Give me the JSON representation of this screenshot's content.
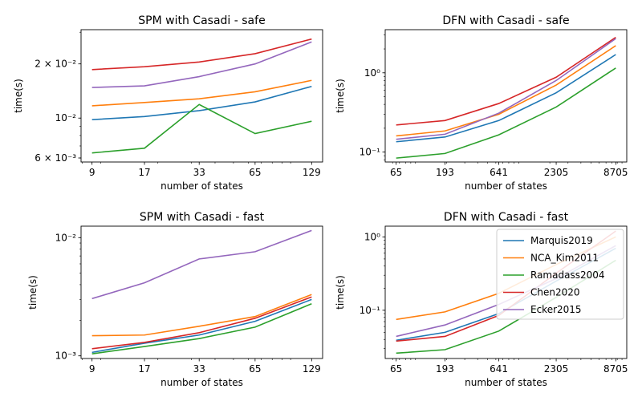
{
  "colors": {
    "Marquis2019": "#1f77b4",
    "NCA_Kim2011": "#ff7f0e",
    "Ramadass2004": "#2ca02c",
    "Chen2020": "#d62728",
    "Ecker2015": "#9467bd"
  },
  "legend_order": [
    "Marquis2019",
    "NCA_Kim2011",
    "Ramadass2004",
    "Chen2020",
    "Ecker2015"
  ],
  "chart_data": [
    {
      "type": "line",
      "title": "SPM with Casadi - safe",
      "xlabel": "number of states",
      "ylabel": "time(s)",
      "xscale": "log",
      "yscale": "log",
      "x": [
        9,
        17,
        33,
        65,
        129
      ],
      "xticks": [
        "9",
        "17",
        "33",
        "65",
        "129"
      ],
      "ylim": [
        0.0057,
        0.031
      ],
      "ymajor": [
        {
          "v": 0.006,
          "t": "6 × 10⁻³"
        },
        {
          "v": 0.01,
          "t": "10⁻²"
        },
        {
          "v": 0.02,
          "t": "2 × 10⁻²"
        }
      ],
      "legend": "",
      "series": [
        {
          "name": "Marquis2019",
          "values": [
            0.0098,
            0.0102,
            0.011,
            0.0123,
            0.015
          ]
        },
        {
          "name": "NCA_Kim2011",
          "values": [
            0.0117,
            0.0122,
            0.0128,
            0.014,
            0.0162
          ]
        },
        {
          "name": "Ramadass2004",
          "values": [
            0.0064,
            0.0068,
            0.0119,
            0.0082,
            0.0096
          ]
        },
        {
          "name": "Chen2020",
          "values": [
            0.0186,
            0.0193,
            0.0205,
            0.0228,
            0.0275
          ]
        },
        {
          "name": "Ecker2015",
          "values": [
            0.0148,
            0.0151,
            0.017,
            0.02,
            0.0265
          ]
        }
      ]
    },
    {
      "type": "line",
      "title": "DFN with Casadi - safe",
      "xlabel": "number of states",
      "ylabel": "time(s)",
      "xscale": "log",
      "yscale": "log",
      "x": [
        65,
        193,
        641,
        2305,
        8705
      ],
      "xticks": [
        "65",
        "193",
        "641",
        "2305",
        "8705"
      ],
      "ylim": [
        0.075,
        3.5
      ],
      "ymajor": [
        {
          "v": 0.1,
          "t": "10⁻¹"
        },
        {
          "v": 1,
          "t": "10⁰"
        }
      ],
      "legend": "",
      "series": [
        {
          "name": "Marquis2019",
          "values": [
            0.135,
            0.155,
            0.25,
            0.56,
            1.7
          ]
        },
        {
          "name": "NCA_Kim2011",
          "values": [
            0.16,
            0.185,
            0.3,
            0.7,
            2.2
          ]
        },
        {
          "name": "Ramadass2004",
          "values": [
            0.084,
            0.096,
            0.165,
            0.37,
            1.15
          ]
        },
        {
          "name": "Chen2020",
          "values": [
            0.22,
            0.25,
            0.41,
            0.88,
            2.8
          ]
        },
        {
          "name": "Ecker2015",
          "values": [
            0.145,
            0.168,
            0.31,
            0.8,
            2.7
          ]
        }
      ]
    },
    {
      "type": "line",
      "title": "SPM with Casadi - fast",
      "xlabel": "number of states",
      "ylabel": "time(s)",
      "xscale": "log",
      "yscale": "log",
      "x": [
        9,
        17,
        33,
        65,
        129
      ],
      "xticks": [
        "9",
        "17",
        "33",
        "65",
        "129"
      ],
      "ylim": [
        0.00095,
        0.0125
      ],
      "ymajor": [
        {
          "v": 0.001,
          "t": "10⁻³"
        },
        {
          "v": 0.01,
          "t": "10⁻²"
        }
      ],
      "legend": "",
      "series": [
        {
          "name": "Marquis2019",
          "values": [
            0.00107,
            0.00128,
            0.0015,
            0.00196,
            0.003
          ]
        },
        {
          "name": "NCA_Kim2011",
          "values": [
            0.00148,
            0.0015,
            0.00178,
            0.00215,
            0.0033
          ]
        },
        {
          "name": "Ramadass2004",
          "values": [
            0.00104,
            0.0012,
            0.0014,
            0.00175,
            0.00276
          ]
        },
        {
          "name": "Chen2020",
          "values": [
            0.00115,
            0.0013,
            0.00157,
            0.00208,
            0.00315
          ]
        },
        {
          "name": "Ecker2015",
          "values": [
            0.00305,
            0.00415,
            0.0066,
            0.0076,
            0.0115
          ]
        }
      ]
    },
    {
      "type": "line",
      "title": "DFN with Casadi - fast",
      "xlabel": "number of states",
      "ylabel": "time(s)",
      "xscale": "log",
      "yscale": "log",
      "x": [
        65,
        193,
        641,
        2305,
        8705
      ],
      "xticks": [
        "65",
        "193",
        "641",
        "2305",
        "8705"
      ],
      "ylim": [
        0.022,
        1.4
      ],
      "ymajor": [
        {
          "v": 0.1,
          "t": "10⁻¹"
        },
        {
          "v": 1,
          "t": "10⁰"
        }
      ],
      "legend": "top-right",
      "series": [
        {
          "name": "Marquis2019",
          "values": [
            0.039,
            0.05,
            0.09,
            0.25,
            0.7
          ]
        },
        {
          "name": "NCA_Kim2011",
          "values": [
            0.075,
            0.095,
            0.17,
            0.42,
            1.0
          ]
        },
        {
          "name": "Ramadass2004",
          "values": [
            0.026,
            0.029,
            0.052,
            0.15,
            0.48
          ]
        },
        {
          "name": "Chen2020",
          "values": [
            0.038,
            0.044,
            0.085,
            0.32,
            1.2
          ]
        },
        {
          "name": "Ecker2015",
          "values": [
            0.044,
            0.063,
            0.12,
            0.27,
            0.76
          ]
        }
      ]
    }
  ]
}
